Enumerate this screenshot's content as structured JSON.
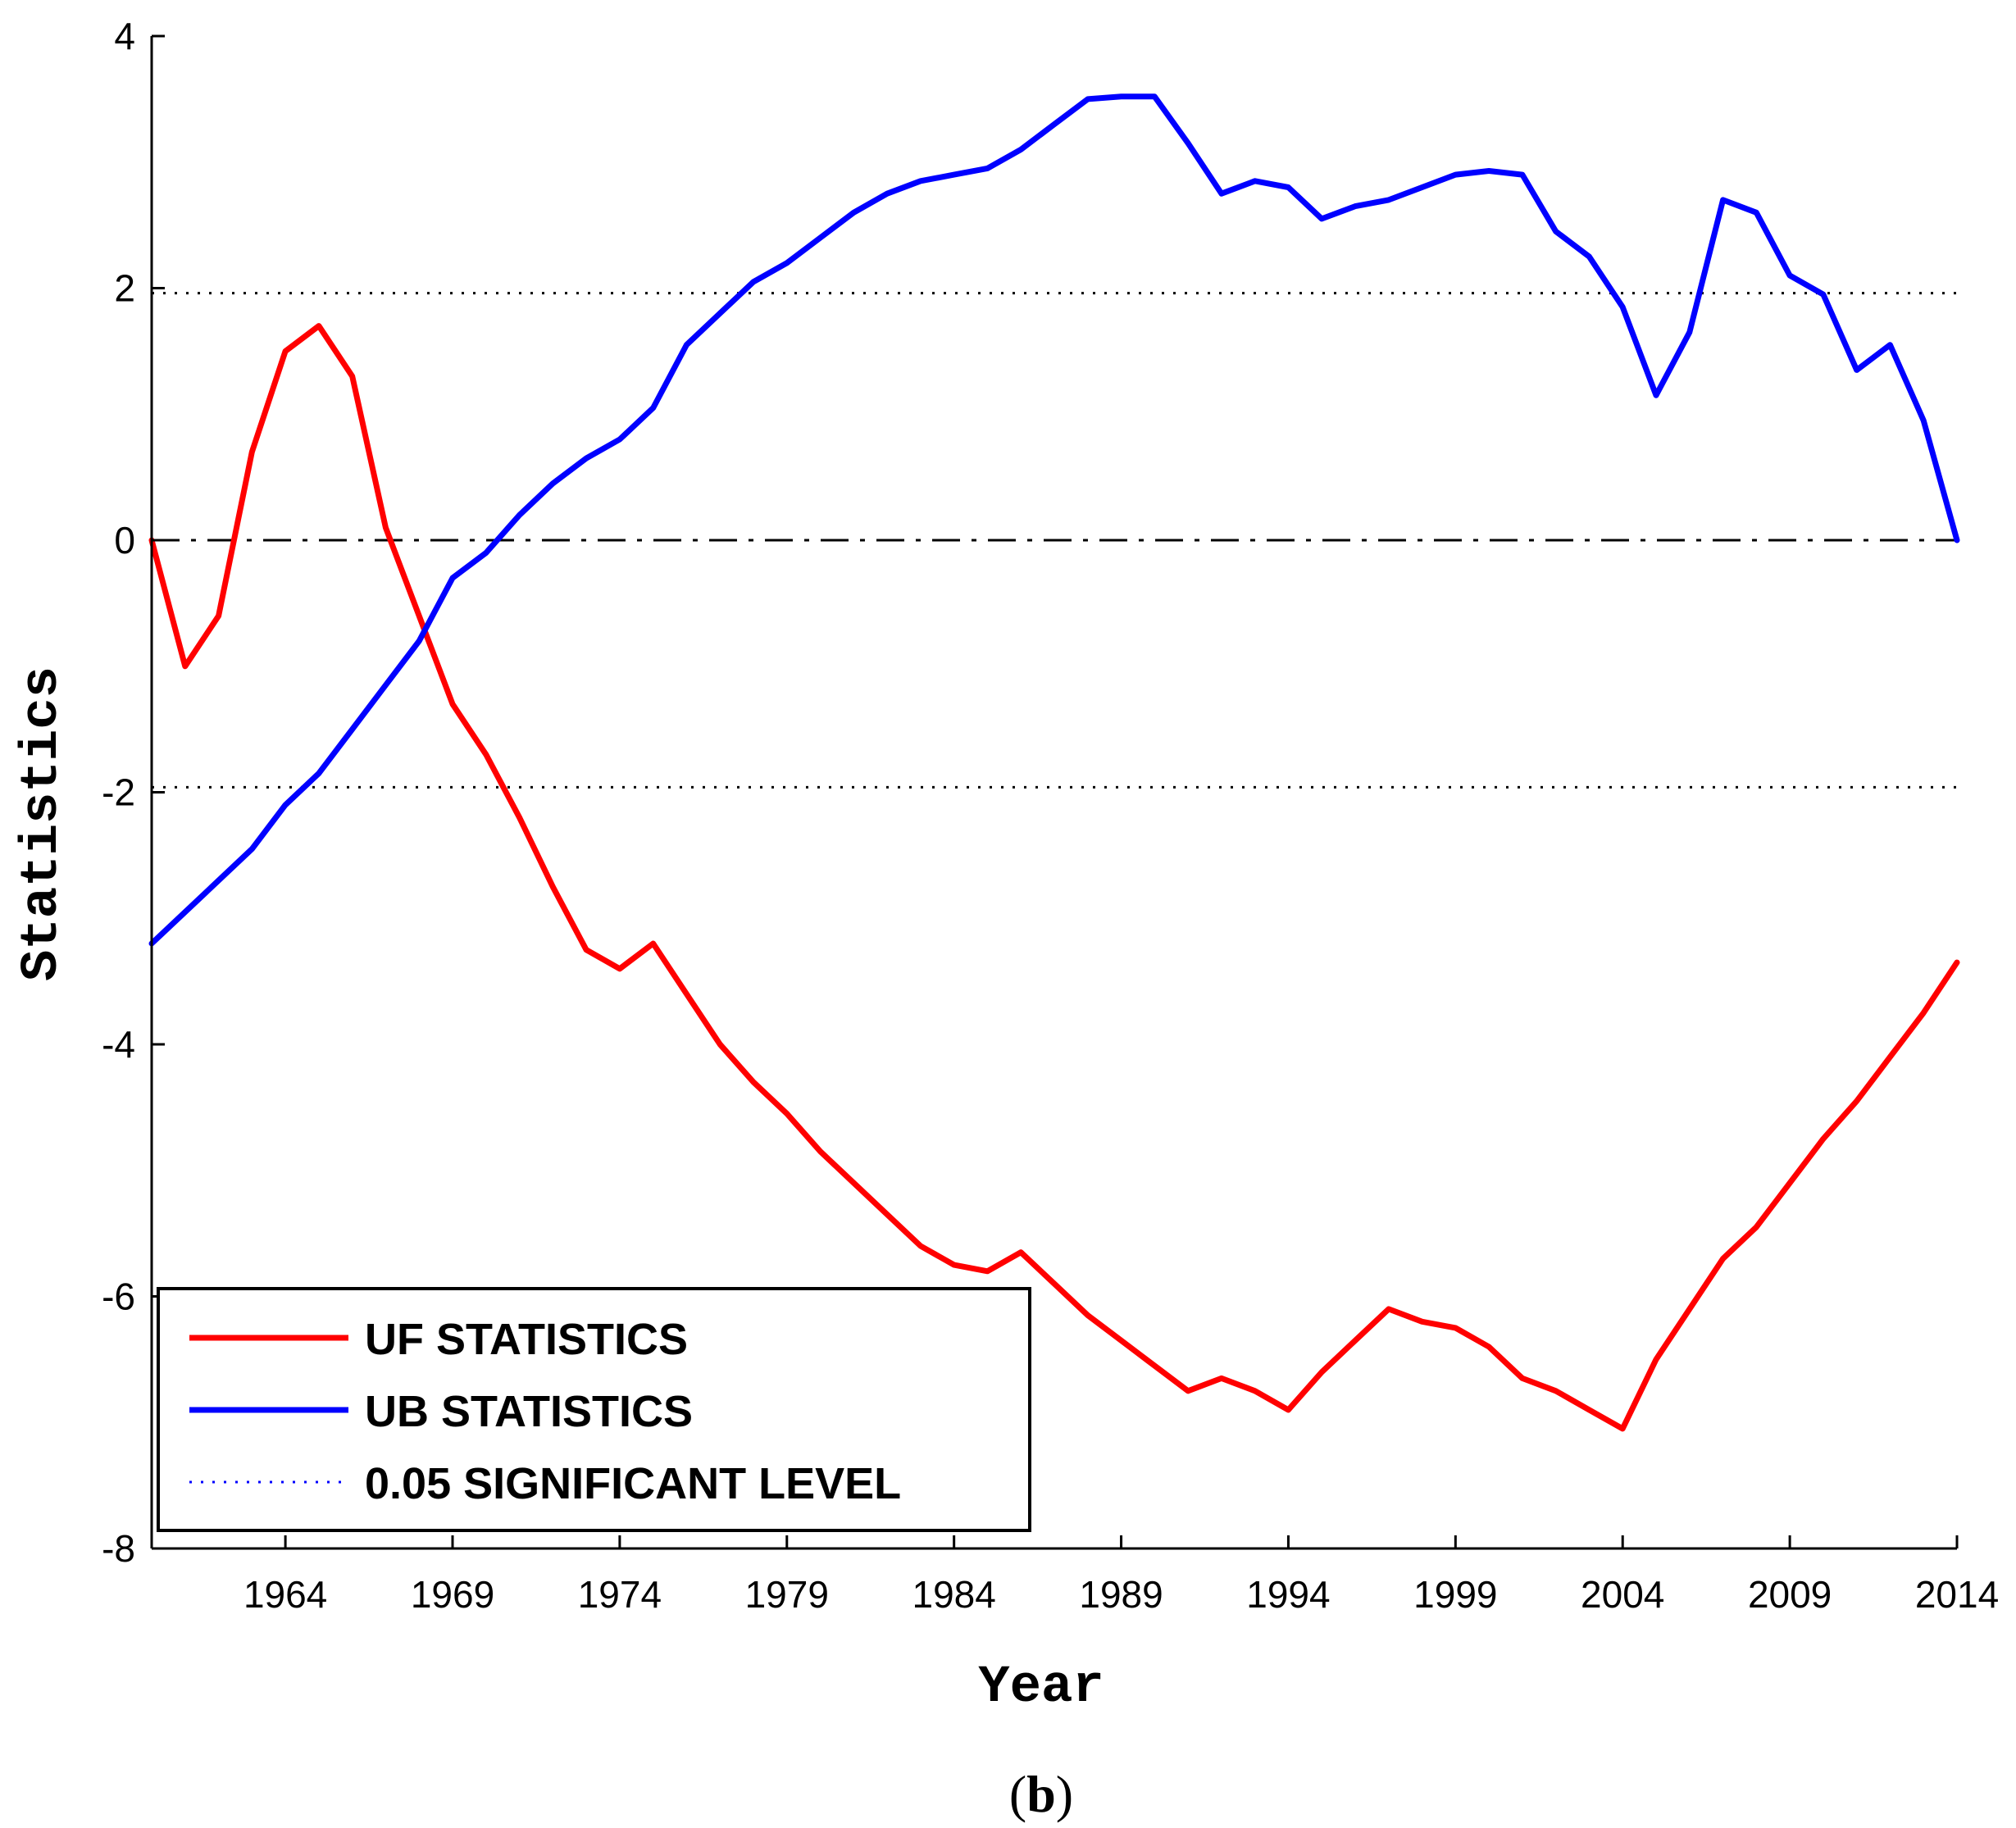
{
  "chart_data": {
    "type": "line",
    "title": "",
    "xlabel": "Year",
    "ylabel": "Statistics",
    "panel_label": "(b)",
    "panel_label_parts": {
      "open": "(",
      "letter": "b",
      "close": ")"
    },
    "xlim": [
      1960,
      2014
    ],
    "ylim": [
      -8,
      4
    ],
    "xticks": [
      1964,
      1969,
      1974,
      1979,
      1984,
      1989,
      1994,
      1999,
      2004,
      2009,
      2014
    ],
    "yticks": [
      4,
      2,
      0,
      -2,
      -4,
      -6,
      -8
    ],
    "significance_level": 1.96,
    "zero_line": 0,
    "series": [
      {
        "name": "UF STATISTICS",
        "color": "#ff0000",
        "x": [
          1960,
          1961,
          1962,
          1963,
          1964,
          1965,
          1966,
          1967,
          1968,
          1969,
          1970,
          1971,
          1972,
          1973,
          1974,
          1975,
          1976,
          1977,
          1978,
          1979,
          1980,
          1981,
          1982,
          1983,
          1984,
          1985,
          1986,
          1987,
          1988,
          1989,
          1990,
          1991,
          1992,
          1993,
          1994,
          1995,
          1996,
          1997,
          1998,
          1999,
          2000,
          2001,
          2002,
          2003,
          2004,
          2005,
          2006,
          2007,
          2008,
          2009,
          2010,
          2011,
          2012,
          2013,
          2014
        ],
        "y": [
          0,
          -1.0,
          -0.6,
          0.7,
          1.5,
          1.7,
          1.3,
          0.1,
          -0.6,
          -1.3,
          -1.7,
          -2.2,
          -2.75,
          -3.25,
          -3.4,
          -3.2,
          -3.6,
          -4.0,
          -4.3,
          -4.55,
          -4.85,
          -5.1,
          -5.35,
          -5.6,
          -5.75,
          -5.8,
          -5.65,
          -5.9,
          -6.15,
          -6.35,
          -6.55,
          -6.75,
          -6.65,
          -6.75,
          -6.9,
          -6.6,
          -6.35,
          -6.1,
          -6.2,
          -6.25,
          -6.4,
          -6.65,
          -6.75,
          -6.9,
          -7.05,
          -6.5,
          -6.1,
          -5.7,
          -5.45,
          -5.1,
          -4.75,
          -4.45,
          -4.1,
          -3.75,
          -3.35
        ]
      },
      {
        "name": "UB STATISTICS",
        "color": "#0000ff",
        "x": [
          1960,
          1961,
          1962,
          1963,
          1964,
          1965,
          1966,
          1967,
          1968,
          1969,
          1970,
          1971,
          1972,
          1973,
          1974,
          1975,
          1976,
          1977,
          1978,
          1979,
          1980,
          1981,
          1982,
          1983,
          1984,
          1985,
          1986,
          1987,
          1988,
          1989,
          1990,
          1991,
          1992,
          1993,
          1994,
          1995,
          1996,
          1997,
          1998,
          1999,
          2000,
          2001,
          2002,
          2003,
          2004,
          2005,
          2006,
          2007,
          2008,
          2009,
          2010,
          2011,
          2012,
          2013,
          2014
        ],
        "y": [
          -3.2,
          -2.95,
          -2.7,
          -2.45,
          -2.1,
          -1.85,
          -1.5,
          -1.15,
          -0.8,
          -0.3,
          -0.1,
          0.2,
          0.45,
          0.65,
          0.8,
          1.05,
          1.55,
          1.8,
          2.05,
          2.2,
          2.4,
          2.6,
          2.75,
          2.85,
          2.9,
          2.95,
          3.1,
          3.3,
          3.5,
          3.52,
          3.52,
          3.15,
          2.75,
          2.85,
          2.8,
          2.55,
          2.65,
          2.7,
          2.8,
          2.9,
          2.93,
          2.9,
          2.45,
          2.25,
          1.85,
          1.15,
          1.65,
          2.7,
          2.6,
          2.1,
          1.95,
          1.35,
          1.55,
          0.95,
          0
        ]
      }
    ],
    "legend": {
      "position": "lower-left",
      "entries": [
        {
          "label": "UF STATISTICS",
          "color": "#ff0000",
          "style": "solid"
        },
        {
          "label": "UB STATISTICS",
          "color": "#0000ff",
          "style": "solid"
        },
        {
          "label": "0.05 SIGNIFICANT LEVEL",
          "color": "#0000ff",
          "style": "dotted"
        }
      ]
    },
    "grid": false
  }
}
